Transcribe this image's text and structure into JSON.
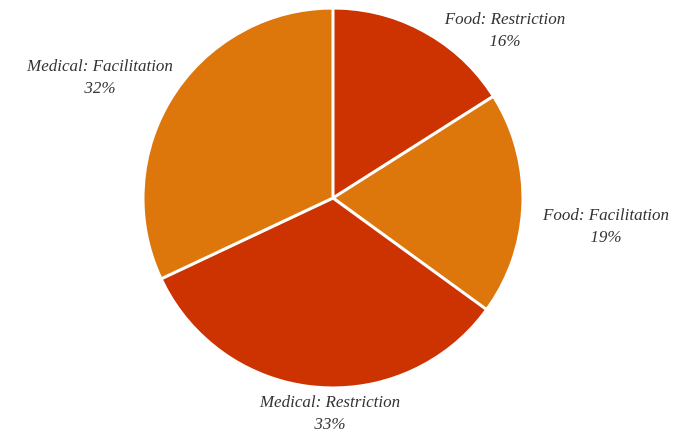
{
  "chart_data": {
    "type": "pie",
    "categories": [
      "Food: Restriction",
      "Food: Facilitation",
      "Medical: Restriction",
      "Medical: Facilitation"
    ],
    "values": [
      16,
      19,
      33,
      32
    ],
    "value_labels": [
      "16%",
      "19%",
      "33%",
      "32%"
    ],
    "colors": [
      "#cc3300",
      "#dd770c",
      "#cc3300",
      "#dd770c"
    ]
  }
}
